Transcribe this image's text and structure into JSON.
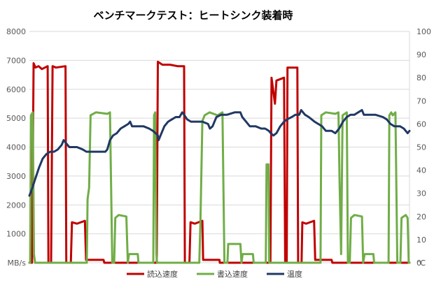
{
  "chart_data": {
    "type": "line",
    "title": "ベンチマークテスト：ヒートシンク装着時",
    "left_axis_unit": "MB/s",
    "right_axis_unit": "℃",
    "y_left_ticks": [
      0,
      1000,
      2000,
      3000,
      4000,
      5000,
      6000,
      7000,
      8000
    ],
    "y_left_tick_labels": [
      "",
      "1000",
      "2000",
      "3000",
      "4000",
      "5000",
      "6000",
      "7000",
      "8000"
    ],
    "y_right_ticks": [
      0,
      10,
      20,
      30,
      40,
      50,
      60,
      70,
      80,
      90,
      100
    ],
    "y_right_tick_labels": [
      "0",
      "10",
      "20",
      "30",
      "40",
      "50",
      "60",
      "70",
      "80",
      "90",
      "100"
    ],
    "ylim_left": [
      0,
      8000
    ],
    "ylim_right": [
      0,
      100
    ],
    "x_range": [
      0,
      100
    ],
    "grid": true,
    "legend_position": "bottom",
    "series": [
      {
        "name": "読込速度",
        "axis": "left",
        "color": "#c00000",
        "points": [
          [
            0,
            0
          ],
          [
            0.7,
            0
          ],
          [
            1.1,
            6900
          ],
          [
            1.6,
            6750
          ],
          [
            2.4,
            6800
          ],
          [
            3.3,
            6700
          ],
          [
            4.8,
            6800
          ],
          [
            5,
            0
          ],
          [
            5.7,
            0
          ],
          [
            6.1,
            6800
          ],
          [
            7,
            6750
          ],
          [
            9.5,
            6800
          ],
          [
            9.7,
            0
          ],
          [
            10.9,
            0
          ],
          [
            11.2,
            1400
          ],
          [
            12.5,
            1350
          ],
          [
            14.6,
            1450
          ],
          [
            14.9,
            100
          ],
          [
            19.5,
            100
          ],
          [
            19.7,
            0
          ],
          [
            33.5,
            0
          ],
          [
            33.8,
            6950
          ],
          [
            35,
            6850
          ],
          [
            37,
            6850
          ],
          [
            39,
            6800
          ],
          [
            40.7,
            6800
          ],
          [
            40.9,
            0
          ],
          [
            42.1,
            0
          ],
          [
            42.4,
            1400
          ],
          [
            43.5,
            1350
          ],
          [
            45.5,
            1450
          ],
          [
            45.7,
            100
          ],
          [
            50,
            100
          ],
          [
            50.1,
            0
          ],
          [
            63.4,
            0
          ],
          [
            63.7,
            6400
          ],
          [
            64.6,
            5500
          ],
          [
            65,
            6300
          ],
          [
            67,
            6400
          ],
          [
            67.3,
            0
          ],
          [
            67.7,
            0
          ],
          [
            67.9,
            6750
          ],
          [
            70.5,
            6750
          ],
          [
            70.7,
            0
          ],
          [
            71.6,
            0
          ],
          [
            71.8,
            1400
          ],
          [
            72.8,
            1350
          ],
          [
            74.9,
            1450
          ],
          [
            75.2,
            100
          ],
          [
            79.5,
            100
          ],
          [
            79.7,
            0
          ],
          [
            100,
            0
          ]
        ]
      },
      {
        "name": "書込速度",
        "axis": "left",
        "color": "#70ad47",
        "points": [
          [
            0,
            0
          ],
          [
            0.2,
            0
          ],
          [
            0.4,
            5100
          ],
          [
            0.9,
            5200
          ],
          [
            1.2,
            300
          ],
          [
            1.5,
            0
          ],
          [
            15.1,
            0
          ],
          [
            15.3,
            2200
          ],
          [
            15.7,
            2600
          ],
          [
            16.1,
            5100
          ],
          [
            17.5,
            5200
          ],
          [
            20.5,
            5150
          ],
          [
            21.2,
            5200
          ],
          [
            21.8,
            0
          ],
          [
            22.3,
            0
          ],
          [
            22.6,
            1550
          ],
          [
            23.5,
            1650
          ],
          [
            25.5,
            1600
          ],
          [
            25.9,
            0
          ],
          [
            26.2,
            300
          ],
          [
            28.5,
            300
          ],
          [
            28.7,
            0
          ],
          [
            32.6,
            0
          ],
          [
            32.8,
            5100
          ],
          [
            33.1,
            5200
          ],
          [
            33.4,
            300
          ],
          [
            33.6,
            0
          ],
          [
            44.7,
            0
          ],
          [
            45,
            1500
          ],
          [
            45.5,
            4900
          ],
          [
            46.1,
            5100
          ],
          [
            47.4,
            5200
          ],
          [
            49.5,
            5100
          ],
          [
            50.8,
            5200
          ],
          [
            51.3,
            0
          ],
          [
            52.1,
            0
          ],
          [
            52.3,
            650
          ],
          [
            55.5,
            650
          ],
          [
            55.8,
            0
          ],
          [
            56.1,
            300
          ],
          [
            58.8,
            300
          ],
          [
            59,
            0
          ],
          [
            62.2,
            0
          ],
          [
            62.4,
            3400
          ],
          [
            62.9,
            3400
          ],
          [
            63.1,
            0
          ],
          [
            76.6,
            0
          ],
          [
            76.8,
            5100
          ],
          [
            78,
            5200
          ],
          [
            80.5,
            5150
          ],
          [
            81.3,
            5200
          ],
          [
            81.6,
            2800
          ],
          [
            82,
            300
          ],
          [
            82.4,
            5100
          ],
          [
            83.5,
            5200
          ],
          [
            83.8,
            0
          ],
          [
            84.3,
            0
          ],
          [
            84.6,
            1550
          ],
          [
            85.5,
            1650
          ],
          [
            87.5,
            1600
          ],
          [
            87.8,
            0
          ],
          [
            88.2,
            300
          ],
          [
            90.5,
            300
          ],
          [
            90.7,
            0
          ],
          [
            94.5,
            0
          ],
          [
            94.7,
            5100
          ],
          [
            95.2,
            5200
          ],
          [
            95.6,
            5100
          ],
          [
            96.3,
            5200
          ],
          [
            96.8,
            0
          ],
          [
            97.6,
            0
          ],
          [
            97.9,
            1550
          ],
          [
            99,
            1650
          ],
          [
            99.5,
            1550
          ],
          [
            99.8,
            0
          ],
          [
            100,
            0
          ]
        ]
      },
      {
        "name": "温度",
        "axis": "right",
        "color": "#203864",
        "points": [
          [
            0,
            29
          ],
          [
            0.7,
            32
          ],
          [
            1.5,
            36
          ],
          [
            2.5,
            41
          ],
          [
            3.5,
            45
          ],
          [
            4.5,
            47
          ],
          [
            5.5,
            48
          ],
          [
            6.5,
            48
          ],
          [
            7.5,
            49
          ],
          [
            8.5,
            51
          ],
          [
            9,
            53
          ],
          [
            9.5,
            52
          ],
          [
            10.5,
            50
          ],
          [
            11.5,
            50
          ],
          [
            12.5,
            50
          ],
          [
            14,
            49
          ],
          [
            15,
            48
          ],
          [
            16,
            48
          ],
          [
            17.5,
            48
          ],
          [
            19,
            48
          ],
          [
            20,
            48
          ],
          [
            20.5,
            49
          ],
          [
            21.2,
            53
          ],
          [
            22,
            55
          ],
          [
            23,
            56
          ],
          [
            24,
            58
          ],
          [
            25,
            59
          ],
          [
            26,
            60
          ],
          [
            26.5,
            61
          ],
          [
            27,
            59
          ],
          [
            28,
            59
          ],
          [
            30,
            59
          ],
          [
            31.5,
            58
          ],
          [
            32.5,
            57
          ],
          [
            33.2,
            56
          ],
          [
            33.8,
            55
          ],
          [
            34,
            53
          ],
          [
            34.5,
            55
          ],
          [
            35.5,
            59
          ],
          [
            36.5,
            61
          ],
          [
            37.5,
            62
          ],
          [
            38.5,
            63
          ],
          [
            39.5,
            63
          ],
          [
            40.2,
            65
          ],
          [
            40.7,
            64
          ],
          [
            41.5,
            62
          ],
          [
            42.5,
            61
          ],
          [
            44,
            61
          ],
          [
            45.5,
            61
          ],
          [
            47,
            60
          ],
          [
            47.5,
            58
          ],
          [
            48.2,
            59
          ],
          [
            48.7,
            61
          ],
          [
            49.2,
            63
          ],
          [
            50.5,
            64
          ],
          [
            52,
            64
          ],
          [
            54,
            65
          ],
          [
            55.5,
            65
          ],
          [
            56,
            63
          ],
          [
            57,
            61
          ],
          [
            58,
            59
          ],
          [
            59.5,
            59
          ],
          [
            61,
            58
          ],
          [
            62,
            58
          ],
          [
            63,
            57
          ],
          [
            63.5,
            56
          ],
          [
            64.2,
            55
          ],
          [
            65,
            56
          ],
          [
            66,
            59
          ],
          [
            67,
            61
          ],
          [
            67.8,
            62
          ],
          [
            69,
            63
          ],
          [
            70,
            64
          ],
          [
            71,
            64
          ],
          [
            71.5,
            66
          ],
          [
            72.5,
            64
          ],
          [
            73.5,
            63
          ],
          [
            75,
            61
          ],
          [
            76,
            60
          ],
          [
            77,
            59
          ],
          [
            78,
            57
          ],
          [
            78.5,
            57
          ],
          [
            79.5,
            57
          ],
          [
            80.5,
            56
          ],
          [
            81.5,
            58
          ],
          [
            82.5,
            61
          ],
          [
            83.5,
            63
          ],
          [
            84.5,
            64
          ],
          [
            85.5,
            64
          ],
          [
            86.5,
            65
          ],
          [
            87.5,
            66
          ],
          [
            88,
            64
          ],
          [
            89,
            64
          ],
          [
            91,
            64
          ],
          [
            93,
            63
          ],
          [
            94,
            62
          ],
          [
            95,
            60
          ],
          [
            96,
            59
          ],
          [
            97.5,
            59
          ],
          [
            98.5,
            58
          ],
          [
            99.5,
            56
          ],
          [
            100,
            57
          ]
        ]
      }
    ]
  }
}
